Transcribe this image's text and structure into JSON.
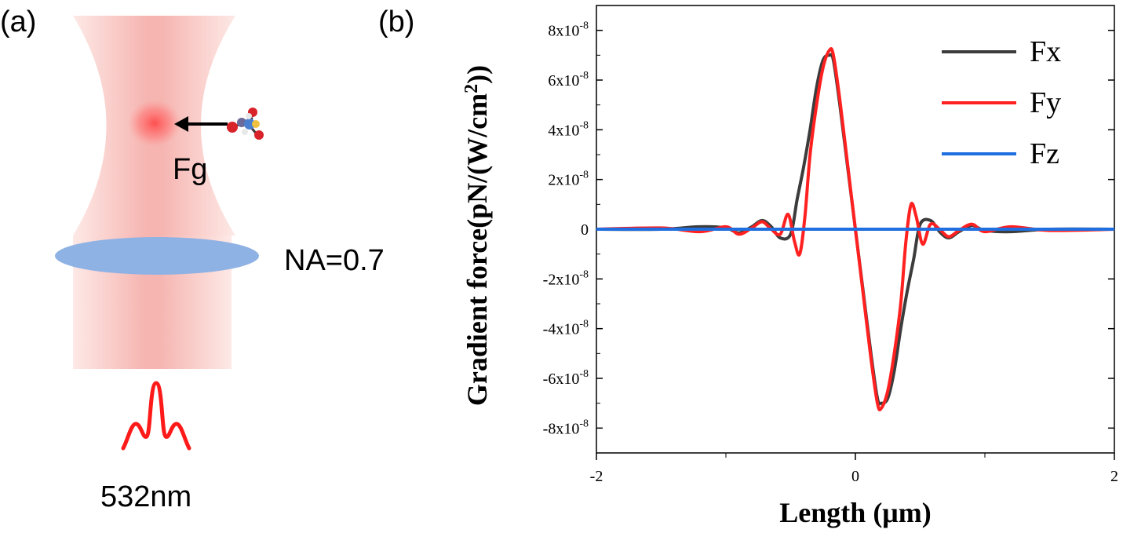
{
  "panel_a": {
    "label": "(a)",
    "force_label": "Fg",
    "na_label": "NA=0.7",
    "wavelength_label": "532nm",
    "colors": {
      "beam": "#f4a3a0",
      "lens": "#8fb2e4",
      "pulse": "#ff1a1a",
      "arrow": "#000000"
    },
    "icons": [
      "arrow-left-icon",
      "molecule-icon",
      "pulse-icon",
      "lens-icon"
    ]
  },
  "panel_b": {
    "label": "(b)"
  },
  "chart_data": {
    "type": "line",
    "xlabel": "Length (μm)",
    "ylabel_main": "Gradient force(pN/(W/cm",
    "ylabel_sup": "2",
    "ylabel_close": "))",
    "xlim": [
      -2,
      2
    ],
    "ylim": [
      -9e-08,
      9e-08
    ],
    "x_ticks": [
      -2,
      0,
      2
    ],
    "x_tick_labels": [
      "-2",
      "0",
      "2"
    ],
    "y_ticks": [
      8e-08,
      6e-08,
      4e-08,
      2e-08,
      0,
      -2e-08,
      -4e-08,
      -6e-08,
      -8e-08
    ],
    "y_tick_labels": [
      {
        "mant": "8x10",
        "exp": "-8"
      },
      {
        "mant": "6x10",
        "exp": "-8"
      },
      {
        "mant": "4x10",
        "exp": "-8"
      },
      {
        "mant": "2x10",
        "exp": "-8"
      },
      {
        "mant": "0",
        "exp": ""
      },
      {
        "mant": "-2x10",
        "exp": "-8"
      },
      {
        "mant": "-4x10",
        "exp": "-8"
      },
      {
        "mant": "-6x10",
        "exp": "-8"
      },
      {
        "mant": "-8x10",
        "exp": "-8"
      }
    ],
    "legend_position": "top-right",
    "grid": false,
    "series": [
      {
        "name": "Fx",
        "color": "#3c3c3c",
        "x": [
          -2,
          -1.5,
          -1.2,
          -1.0,
          -0.9,
          -0.8,
          -0.72,
          -0.65,
          -0.58,
          -0.5,
          -0.45,
          -0.4,
          -0.35,
          -0.3,
          -0.25,
          -0.2,
          -0.17,
          -0.12,
          -0.06,
          0,
          0.06,
          0.12,
          0.17,
          0.2,
          0.25,
          0.3,
          0.35,
          0.4,
          0.45,
          0.5,
          0.58,
          0.65,
          0.72,
          0.8,
          0.9,
          1.0,
          1.2,
          1.5,
          2
        ],
        "y": [
          0,
          0,
          1e-09,
          5e-10,
          -1.5e-09,
          1e-09,
          3.5e-09,
          1e-09,
          -3.5e-09,
          -2e-09,
          1.2e-08,
          2.5e-08,
          4e-08,
          5.7e-08,
          6.8e-08,
          7e-08,
          6.8e-08,
          5e-08,
          2.5e-08,
          0,
          -2.5e-08,
          -5e-08,
          -6.8e-08,
          -7e-08,
          -6.8e-08,
          -5.7e-08,
          -4e-08,
          -2.5e-08,
          -1.2e-08,
          2e-09,
          3.5e-09,
          -1e-09,
          -3.5e-09,
          -1e-09,
          1.5e-09,
          -5e-10,
          -1e-09,
          0,
          0
        ]
      },
      {
        "name": "Fy",
        "color": "#ff2020",
        "x": [
          -2,
          -1.5,
          -1.2,
          -1.0,
          -0.9,
          -0.8,
          -0.72,
          -0.65,
          -0.58,
          -0.52,
          -0.47,
          -0.43,
          -0.39,
          -0.35,
          -0.3,
          -0.25,
          -0.2,
          -0.17,
          -0.12,
          -0.06,
          0,
          0.06,
          0.12,
          0.17,
          0.2,
          0.25,
          0.3,
          0.35,
          0.39,
          0.43,
          0.47,
          0.52,
          0.58,
          0.65,
          0.72,
          0.8,
          0.9,
          1.0,
          1.2,
          1.5,
          2
        ],
        "y": [
          0,
          5e-10,
          -1e-09,
          1e-09,
          -2e-09,
          5e-10,
          3e-09,
          0,
          -2e-09,
          6e-09,
          -5e-09,
          -1e-08,
          5e-09,
          3e-08,
          5e-08,
          6.5e-08,
          7.2e-08,
          7e-08,
          5.2e-08,
          2.6e-08,
          0,
          -2.6e-08,
          -5.2e-08,
          -7e-08,
          -7.2e-08,
          -6.5e-08,
          -5e-08,
          -3e-08,
          -5e-09,
          1e-08,
          5e-09,
          -6e-09,
          2e-09,
          0,
          -3e-09,
          -5e-10,
          2e-09,
          -1e-09,
          1e-09,
          -5e-10,
          0
        ]
      },
      {
        "name": "Fz",
        "color": "#1f6fe0",
        "x": [
          -2,
          2
        ],
        "y": [
          0,
          0
        ]
      }
    ]
  }
}
